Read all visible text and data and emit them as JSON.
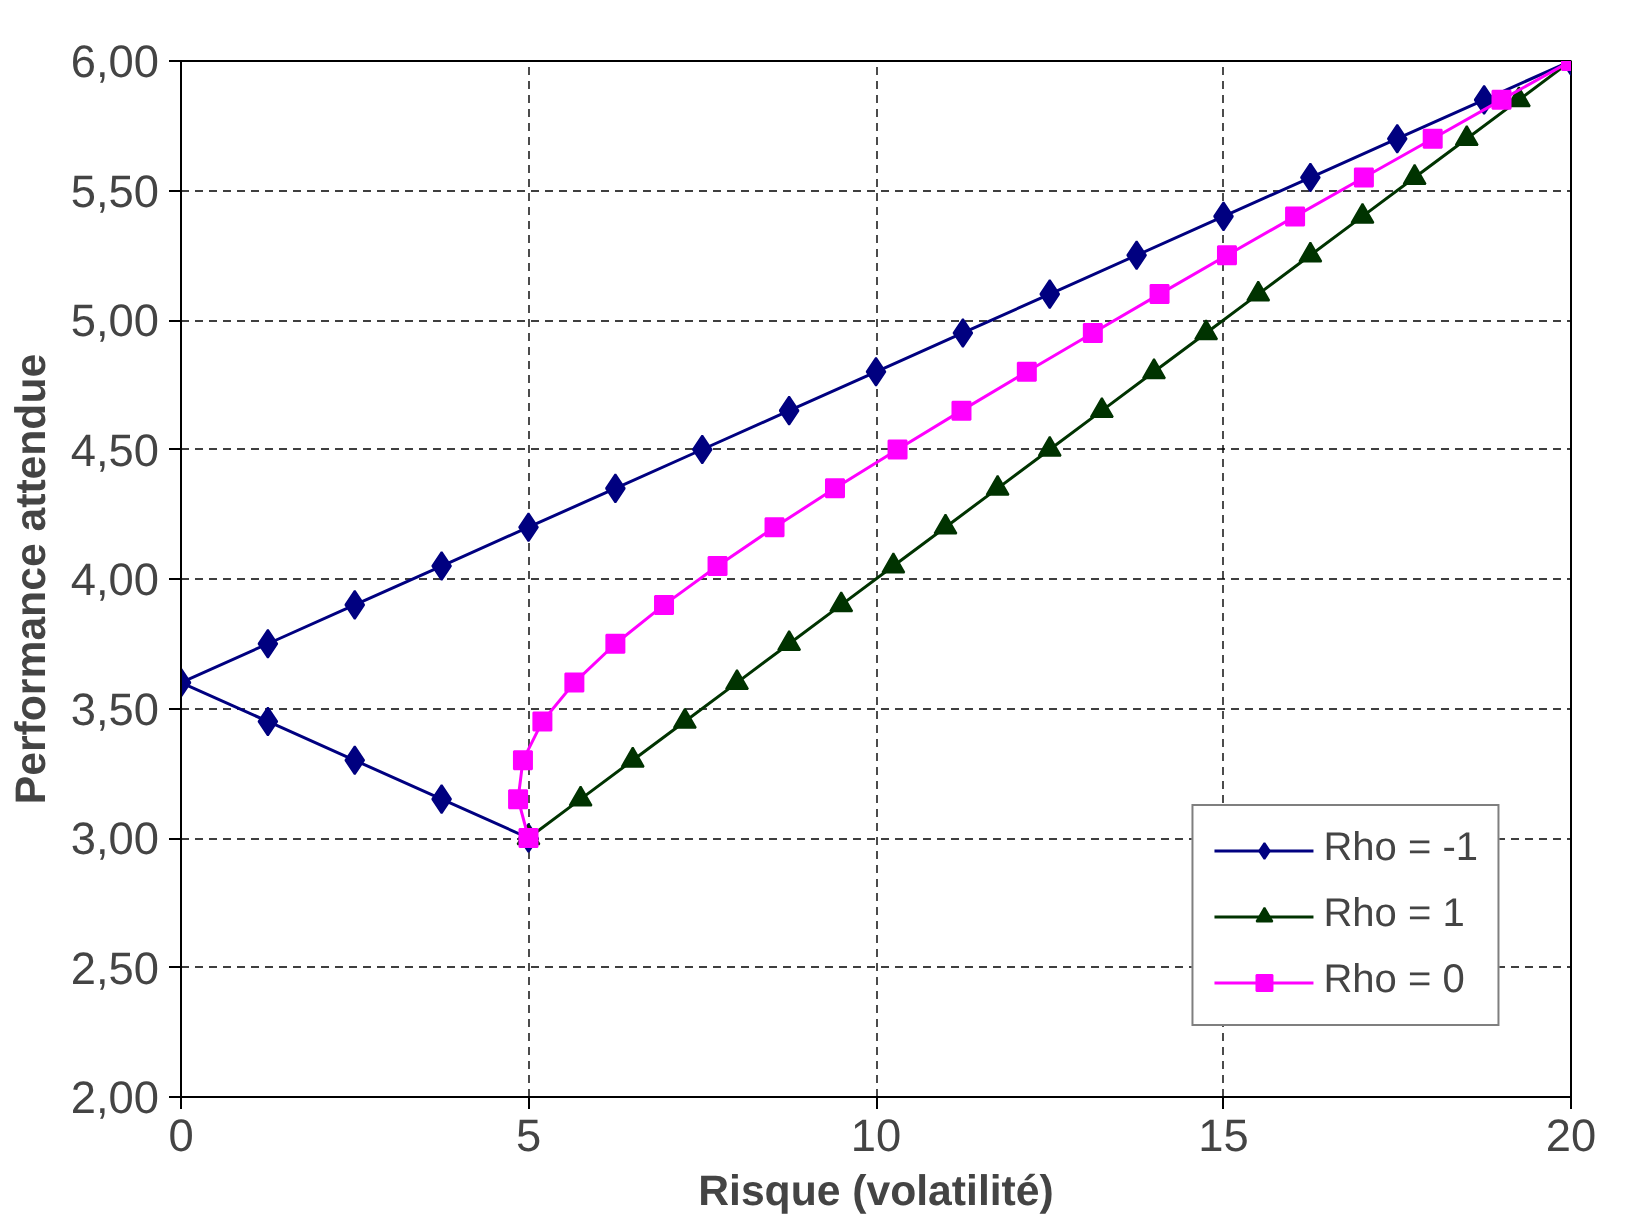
{
  "chart_data": {
    "type": "line",
    "xlabel": "Risque (volatilité)",
    "ylabel": "Performance attendue",
    "xlim": [
      0,
      20
    ],
    "xticks": [
      0,
      5,
      10,
      15,
      20
    ],
    "ylim": [
      2,
      6
    ],
    "yticks": [
      {
        "value": 2,
        "label": "2,00"
      },
      {
        "value": 2.5,
        "label": "2,50"
      },
      {
        "value": 3,
        "label": "3,00"
      },
      {
        "value": 3.5,
        "label": "3,50"
      },
      {
        "value": 4,
        "label": "4,00"
      },
      {
        "value": 4.5,
        "label": "4,50"
      },
      {
        "value": 5,
        "label": "5,00"
      },
      {
        "value": 5.5,
        "label": "5,50"
      },
      {
        "value": 6,
        "label": "6,00"
      }
    ],
    "grid": true,
    "legend": "bottom right",
    "line_style": "solid",
    "series": [
      {
        "name": "Rho = -1",
        "color": "#000080",
        "marker": "diamond",
        "x": [
          5,
          3.75,
          2.5,
          1.25,
          0,
          1.25,
          2.5,
          3.75,
          5,
          6.25,
          7.5,
          8.75,
          10,
          11.25,
          12.5,
          13.75,
          15,
          16.25,
          17.5,
          18.75,
          20
        ],
        "values": [
          3.0,
          3.15,
          3.3,
          3.45,
          3.6,
          3.75,
          3.9,
          4.05,
          4.2,
          4.35,
          4.5,
          4.65,
          4.8,
          4.95,
          5.1,
          5.25,
          5.4,
          5.55,
          5.7,
          5.85,
          6.0
        ]
      },
      {
        "name": "Rho = 1",
        "color": "#003300",
        "marker": "triangle",
        "x": [
          5,
          5.75,
          6.5,
          7.25,
          8,
          8.75,
          9.5,
          10.25,
          11,
          11.75,
          12.5,
          13.25,
          14,
          14.75,
          15.5,
          16.25,
          17,
          17.75,
          18.5,
          19.25,
          20
        ],
        "values": [
          3.0,
          3.15,
          3.3,
          3.45,
          3.6,
          3.75,
          3.9,
          4.05,
          4.2,
          4.35,
          4.5,
          4.65,
          4.8,
          4.95,
          5.1,
          5.25,
          5.4,
          5.55,
          5.7,
          5.85,
          6.0
        ]
      },
      {
        "name": "Rho = 0",
        "color": "#ff00ff",
        "marker": "square",
        "x": [
          5,
          4.85,
          4.92,
          5.2,
          5.66,
          6.25,
          6.95,
          7.72,
          8.54,
          9.41,
          10.31,
          11.23,
          12.17,
          13.12,
          14.08,
          15.05,
          16.03,
          17.02,
          18.01,
          19.0,
          20
        ],
        "values": [
          3.0,
          3.15,
          3.3,
          3.45,
          3.6,
          3.75,
          3.9,
          4.05,
          4.2,
          4.35,
          4.5,
          4.65,
          4.8,
          4.95,
          5.1,
          5.25,
          5.4,
          5.55,
          5.7,
          5.85,
          6.0
        ]
      }
    ]
  }
}
